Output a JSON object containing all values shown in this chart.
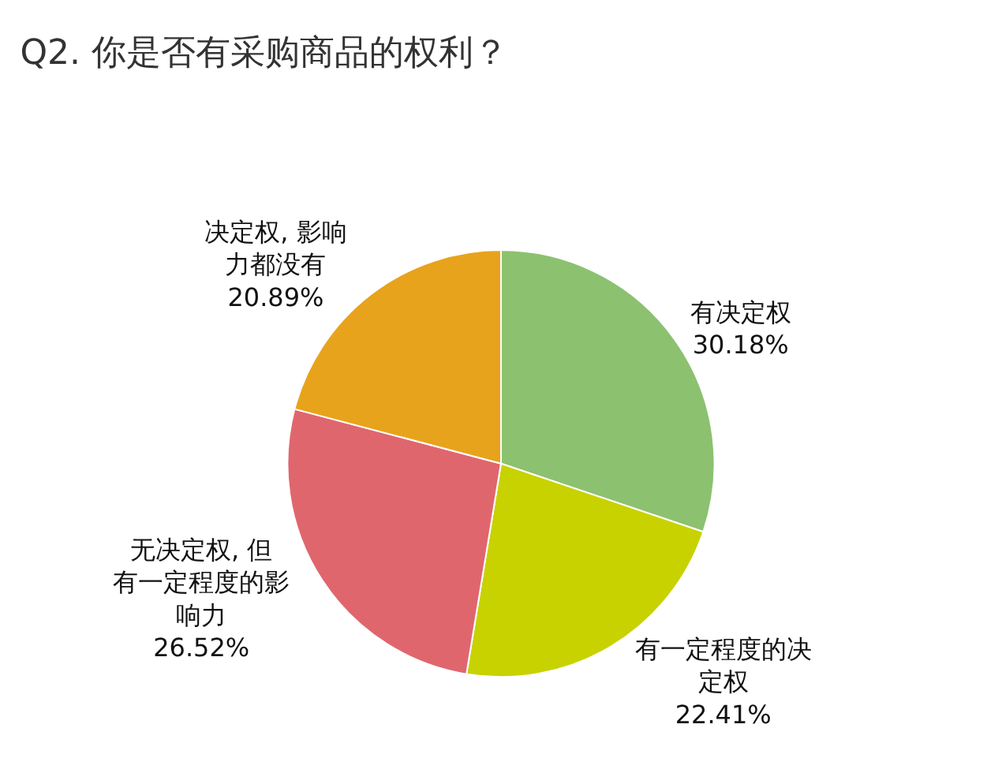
{
  "chart_data": {
    "type": "pie",
    "title": "Q2. 你是否有采购商品的权利？",
    "categories": [
      "有决定权",
      "有一定程度的决定权",
      "无决定权, 但有一定程度的影响力",
      "决定权, 影响力都没有"
    ],
    "values": [
      30.18,
      22.41,
      26.52,
      20.89
    ],
    "value_labels": [
      "30.18%",
      "22.41%",
      "26.52%",
      "20.89%"
    ],
    "colors": [
      "#8cc170",
      "#c8d200",
      "#e0666e",
      "#e8a31c"
    ],
    "legend": false
  }
}
